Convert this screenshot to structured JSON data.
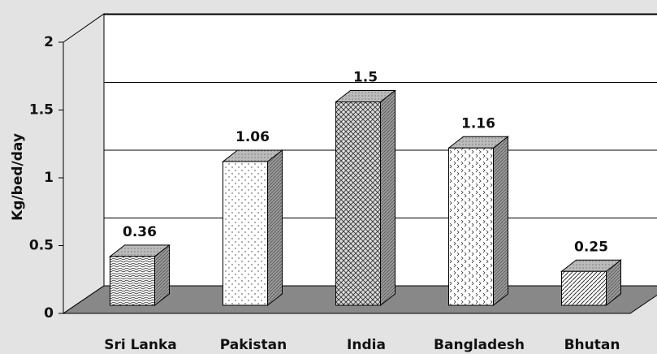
{
  "chart_data": {
    "type": "bar3d",
    "categories": [
      "Sri Lanka",
      "Pakistan",
      "India",
      "Bangladesh",
      "Bhutan"
    ],
    "values": [
      0.36,
      1.06,
      1.5,
      1.16,
      0.25
    ],
    "y_label": "Kg/bed/day",
    "ylim": [
      0,
      2
    ],
    "yticks": [
      0,
      0.5,
      1,
      1.5,
      2
    ],
    "grid": true
  }
}
